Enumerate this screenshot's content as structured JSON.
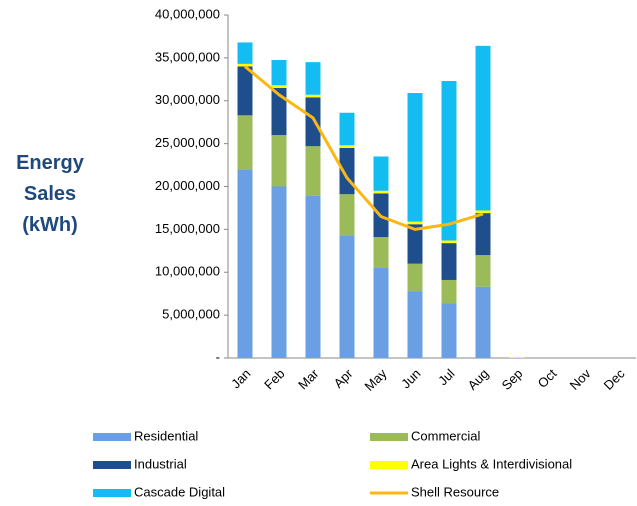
{
  "chart_data": {
    "type": "bar",
    "stacked": true,
    "y_label": "Energy Sales (kWh)",
    "categories": [
      "Jan",
      "Feb",
      "Mar",
      "Apr",
      "May",
      "Jun",
      "Jul",
      "Aug",
      "Sep",
      "Oct",
      "Nov",
      "Dec"
    ],
    "ylim": [
      0,
      40000000
    ],
    "yticks": [
      {
        "value": 0,
        "label": "-"
      },
      {
        "value": 5000000,
        "label": "5,000,000"
      },
      {
        "value": 10000000,
        "label": "10,000,000"
      },
      {
        "value": 15000000,
        "label": "15,000,000"
      },
      {
        "value": 20000000,
        "label": "20,000,000"
      },
      {
        "value": 25000000,
        "label": "25,000,000"
      },
      {
        "value": 30000000,
        "label": "30,000,000"
      },
      {
        "value": 35000000,
        "label": "35,000,000"
      },
      {
        "value": 40000000,
        "label": "40,000,000"
      }
    ],
    "series": [
      {
        "name": "Residential",
        "color": "#6a9fe3",
        "values": [
          22000000,
          20000000,
          18900000,
          14300000,
          10500000,
          7800000,
          6400000,
          8300000,
          null,
          null,
          null,
          null
        ]
      },
      {
        "name": "Commercial",
        "color": "#9bbb59",
        "values": [
          6300000,
          6000000,
          5800000,
          4800000,
          3600000,
          3200000,
          2700000,
          3700000,
          null,
          null,
          null,
          null
        ]
      },
      {
        "name": "Industrial",
        "color": "#1f4e8c",
        "values": [
          5700000,
          5500000,
          5700000,
          5400000,
          5100000,
          4600000,
          4300000,
          4900000,
          null,
          null,
          null,
          null
        ]
      },
      {
        "name": "Area Lights & Interdivisional",
        "color": "#ffff00",
        "values": [
          300000,
          300000,
          300000,
          300000,
          300000,
          300000,
          300000,
          300000,
          100000,
          null,
          null,
          null
        ]
      },
      {
        "name": "Cascade Digital",
        "color": "#13bdf2",
        "values": [
          2500000,
          2950000,
          3800000,
          3800000,
          4000000,
          15000000,
          18600000,
          19200000,
          null,
          null,
          null,
          null
        ]
      },
      {
        "name": "Shell Resource",
        "color": "#fbb714",
        "type": "line",
        "values": [
          34000000,
          30700000,
          28000000,
          21000000,
          16500000,
          15000000,
          15600000,
          16800000,
          null,
          null,
          null,
          null
        ]
      }
    ]
  }
}
